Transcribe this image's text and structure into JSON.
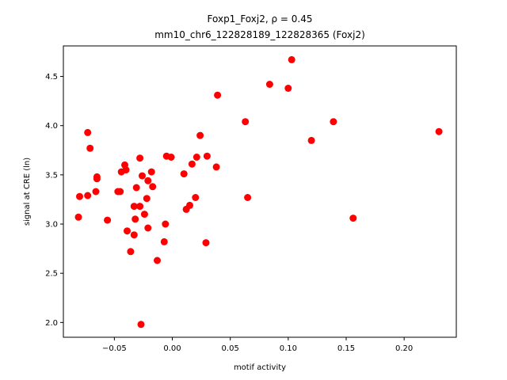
{
  "chart_data": {
    "type": "scatter",
    "title_line1": "Foxp1_Foxj2, ρ = 0.45",
    "title_line2": "mm10_chr6_122828189_122828365 (Foxj2)",
    "xlabel": "motif activity",
    "ylabel": "signal at CRE (ln)",
    "xlim": [
      -0.094,
      0.245
    ],
    "ylim": [
      1.85,
      4.81
    ],
    "xticks": [
      -0.05,
      0.0,
      0.05,
      0.1,
      0.15,
      0.2
    ],
    "xtick_labels": [
      "−0.05",
      "0.00",
      "0.05",
      "0.10",
      "0.15",
      "0.20"
    ],
    "yticks": [
      2.0,
      2.5,
      3.0,
      3.5,
      4.0,
      4.5
    ],
    "ytick_labels": [
      "2.0",
      "2.5",
      "3.0",
      "3.5",
      "4.0",
      "4.5"
    ],
    "grid": false,
    "marker_color": "#ff0000",
    "points": [
      {
        "x": -0.081,
        "y": 3.07
      },
      {
        "x": -0.08,
        "y": 3.28
      },
      {
        "x": -0.073,
        "y": 3.29
      },
      {
        "x": -0.073,
        "y": 3.93
      },
      {
        "x": -0.071,
        "y": 3.77
      },
      {
        "x": -0.066,
        "y": 3.33
      },
      {
        "x": -0.065,
        "y": 3.48
      },
      {
        "x": -0.065,
        "y": 3.46
      },
      {
        "x": -0.056,
        "y": 3.04
      },
      {
        "x": -0.047,
        "y": 3.33
      },
      {
        "x": -0.045,
        "y": 3.33
      },
      {
        "x": -0.044,
        "y": 3.53
      },
      {
        "x": -0.041,
        "y": 3.6
      },
      {
        "x": -0.04,
        "y": 3.55
      },
      {
        "x": -0.039,
        "y": 2.93
      },
      {
        "x": -0.036,
        "y": 2.72
      },
      {
        "x": -0.033,
        "y": 3.18
      },
      {
        "x": -0.033,
        "y": 2.89
      },
      {
        "x": -0.032,
        "y": 3.05
      },
      {
        "x": -0.031,
        "y": 3.37
      },
      {
        "x": -0.028,
        "y": 3.67
      },
      {
        "x": -0.028,
        "y": 3.18
      },
      {
        "x": -0.027,
        "y": 1.98
      },
      {
        "x": -0.026,
        "y": 3.49
      },
      {
        "x": -0.024,
        "y": 3.1
      },
      {
        "x": -0.022,
        "y": 3.26
      },
      {
        "x": -0.021,
        "y": 3.44
      },
      {
        "x": -0.021,
        "y": 2.96
      },
      {
        "x": -0.018,
        "y": 3.53
      },
      {
        "x": -0.017,
        "y": 3.38
      },
      {
        "x": -0.013,
        "y": 2.63
      },
      {
        "x": -0.007,
        "y": 2.82
      },
      {
        "x": -0.006,
        "y": 3.0
      },
      {
        "x": -0.005,
        "y": 3.69
      },
      {
        "x": -0.001,
        "y": 3.68
      },
      {
        "x": 0.01,
        "y": 3.51
      },
      {
        "x": 0.012,
        "y": 3.15
      },
      {
        "x": 0.015,
        "y": 3.19
      },
      {
        "x": 0.017,
        "y": 3.61
      },
      {
        "x": 0.02,
        "y": 3.27
      },
      {
        "x": 0.021,
        "y": 3.68
      },
      {
        "x": 0.024,
        "y": 3.9
      },
      {
        "x": 0.029,
        "y": 2.81
      },
      {
        "x": 0.03,
        "y": 3.69
      },
      {
        "x": 0.038,
        "y": 3.58
      },
      {
        "x": 0.039,
        "y": 4.31
      },
      {
        "x": 0.063,
        "y": 4.04
      },
      {
        "x": 0.065,
        "y": 3.27
      },
      {
        "x": 0.084,
        "y": 4.42
      },
      {
        "x": 0.1,
        "y": 4.38
      },
      {
        "x": 0.103,
        "y": 4.67
      },
      {
        "x": 0.12,
        "y": 3.85
      },
      {
        "x": 0.139,
        "y": 4.04
      },
      {
        "x": 0.156,
        "y": 3.06
      },
      {
        "x": 0.23,
        "y": 3.94
      }
    ]
  }
}
